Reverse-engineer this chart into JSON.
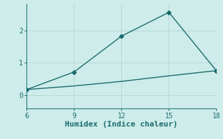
{
  "xlabel": "Humidex (Indice chaleur)",
  "background_color": "#cdecea",
  "grid_color": "#b8d8d6",
  "line_color": "#1a6b6b",
  "spine_color": "#2a7a7a",
  "x_ticks": [
    6,
    9,
    12,
    15,
    18
  ],
  "xlim": [
    6,
    18
  ],
  "ylim": [
    -0.4,
    2.8
  ],
  "y_ticks": [
    0,
    1,
    2
  ],
  "line1_x": [
    6,
    9,
    12,
    15,
    18
  ],
  "line1_y": [
    0.18,
    0.72,
    1.82,
    2.55,
    0.76
  ],
  "line2_x": [
    6,
    9,
    12,
    15,
    18
  ],
  "line2_y": [
    0.18,
    0.29,
    0.43,
    0.6,
    0.76
  ],
  "marker_size": 3,
  "line_width": 1.0
}
